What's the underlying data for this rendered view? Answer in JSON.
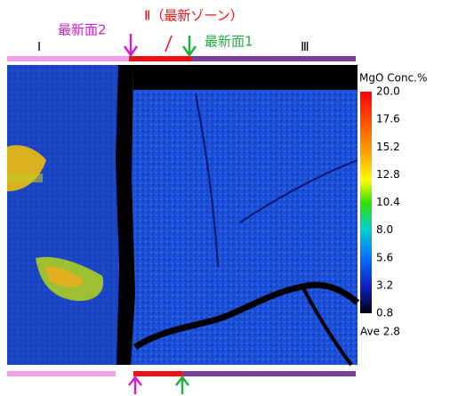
{
  "annotations": {
    "surface2": "最新面2",
    "zone2": "Ⅱ（最新ゾーン）",
    "surface1": "最新面1",
    "zone1": "Ⅰ",
    "zone3": "Ⅲ"
  },
  "colorbar": {
    "title": "MgO Conc.%",
    "labels": [
      "20.0",
      "17.6",
      "15.2",
      "12.8",
      "10.4",
      "8.0",
      "5.6",
      "3.2",
      "0.8"
    ],
    "average": "Ave 2.8"
  }
}
